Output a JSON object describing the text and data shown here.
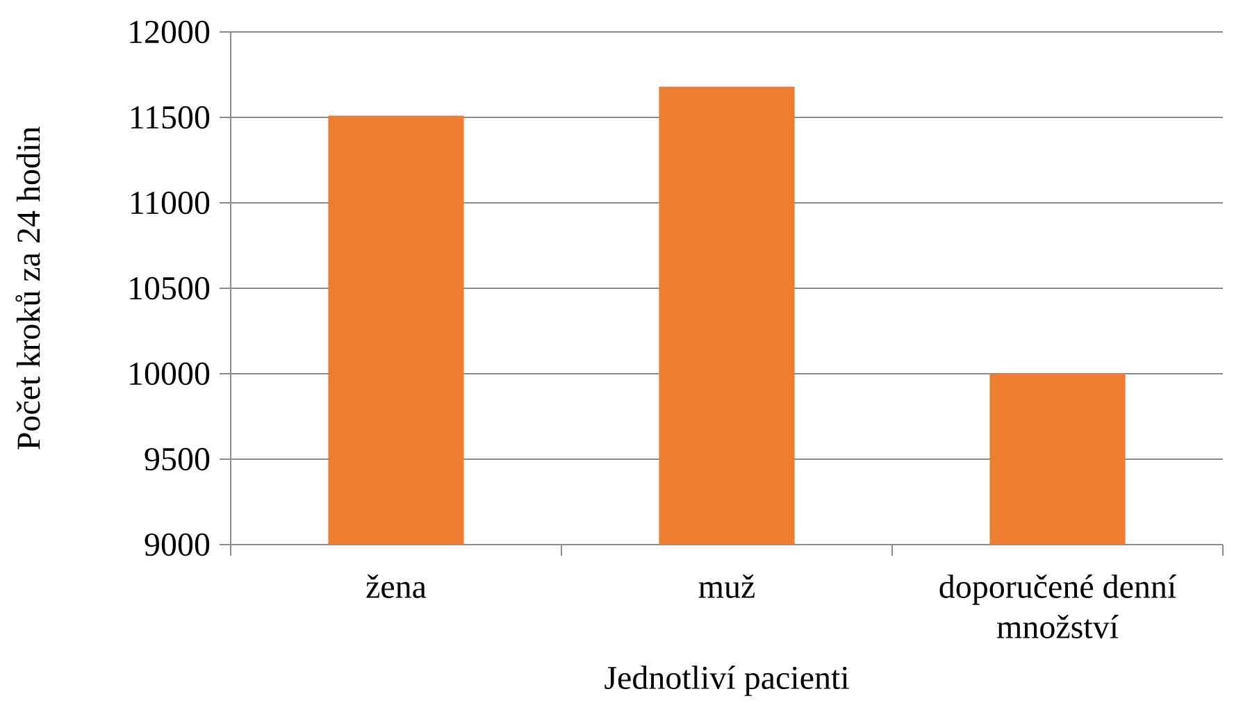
{
  "chart_data": {
    "type": "bar",
    "categories": [
      "žena",
      "muž",
      "doporučené denní množství"
    ],
    "values": [
      11510,
      11680,
      10000
    ],
    "color": "#ed7d31",
    "xlabel": "Jednotliví pacienti",
    "ylabel": "Počet kroků za 24 hodin",
    "ylim": [
      9000,
      12000
    ],
    "yticks": [
      9000,
      9500,
      10000,
      10500,
      11000,
      11500,
      12000
    ],
    "grid": "y"
  }
}
